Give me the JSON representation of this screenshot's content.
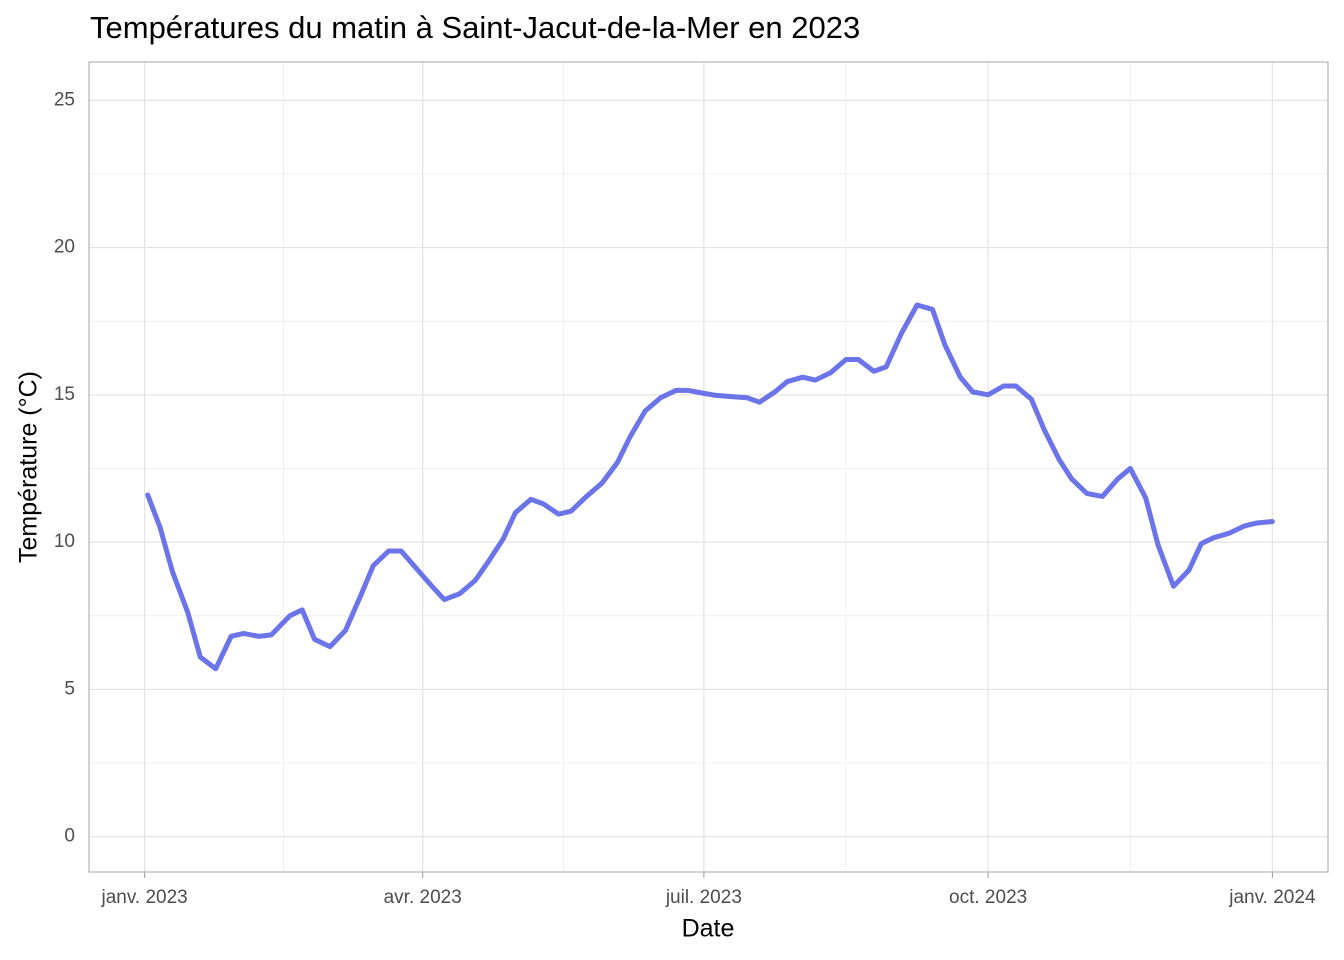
{
  "chart_data": {
    "type": "line",
    "title": "Températures du matin à Saint-Jacut-de-la-Mer en 2023",
    "x_label": "Date",
    "y_label": "Température (°C)",
    "x": [
      1,
      5,
      9,
      14,
      18,
      23,
      28,
      32,
      37,
      41,
      47,
      51,
      55,
      60,
      65,
      70,
      74,
      79,
      83,
      88,
      93,
      97,
      102,
      107,
      111,
      116,
      120,
      125,
      129,
      134,
      138,
      143,
      148,
      153,
      157,
      162,
      167,
      172,
      176,
      181,
      185,
      191,
      195,
      199,
      204,
      208,
      213,
      217,
      222,
      227,
      231,
      236,
      240,
      245,
      250,
      255,
      259,
      264,
      268,
      273,
      278,
      282,
      287,
      291,
      296,
      300,
      305,
      310,
      315,
      319,
      324,
      328,
      333,
      338,
      342,
      346,
      351,
      356,
      360,
      365
    ],
    "series": [
      {
        "name": "Température",
        "color": "#6b74e8",
        "values": [
          11.6,
          10.5,
          9.0,
          7.6,
          6.1,
          5.7,
          6.8,
          6.9,
          6.8,
          6.85,
          7.5,
          7.7,
          6.7,
          6.45,
          7.0,
          8.2,
          9.2,
          9.7,
          9.7,
          9.1,
          8.5,
          8.05,
          8.25,
          8.7,
          9.3,
          10.1,
          11.0,
          11.45,
          11.3,
          10.95,
          11.05,
          11.55,
          12.0,
          12.7,
          13.55,
          14.45,
          14.9,
          15.15,
          15.15,
          15.05,
          14.98,
          14.93,
          14.9,
          14.75,
          15.1,
          15.45,
          15.6,
          15.5,
          15.75,
          16.2,
          16.2,
          15.8,
          15.95,
          17.1,
          18.05,
          17.9,
          16.7,
          15.6,
          15.1,
          15.0,
          15.3,
          15.3,
          14.85,
          13.85,
          12.8,
          12.15,
          11.65,
          11.55,
          12.15,
          12.5,
          11.5,
          9.9,
          8.5,
          9.05,
          9.95,
          10.15,
          10.3,
          10.55,
          10.65,
          10.7
        ]
      }
    ],
    "xlim": [
      -18,
      383
    ],
    "xticks": [
      {
        "value": 0,
        "label": "janv. 2023"
      },
      {
        "value": 90,
        "label": "avr. 2023"
      },
      {
        "value": 181,
        "label": "juil. 2023"
      },
      {
        "value": 273,
        "label": "oct. 2023"
      },
      {
        "value": 365,
        "label": "janv. 2024"
      }
    ],
    "ylim": [
      -1.2,
      26.3
    ],
    "yticks": [
      0,
      5,
      10,
      15,
      20,
      25
    ],
    "grid": true
  }
}
